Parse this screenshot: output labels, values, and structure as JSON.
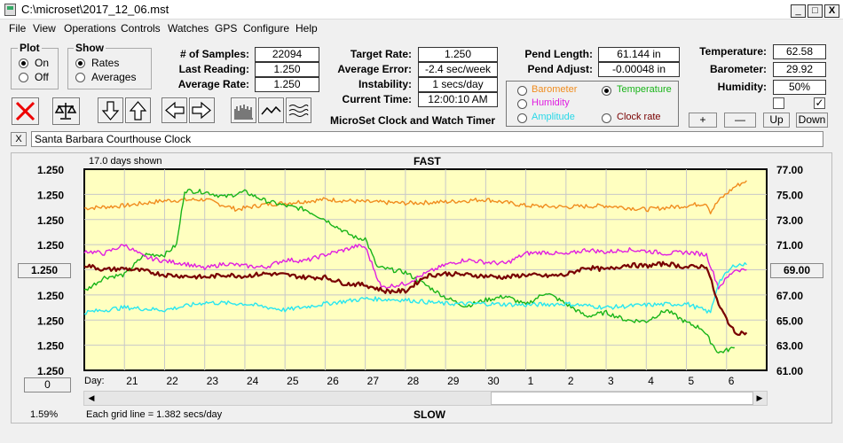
{
  "window": {
    "title": "C:\\microset\\2017_12_06.mst",
    "min": "_",
    "max": "□",
    "close": "X"
  },
  "menu": [
    "File",
    "View",
    "Operations",
    "Controls",
    "Watches",
    "GPS",
    "Configure",
    "Help"
  ],
  "plot": {
    "title": "Plot",
    "on": "On",
    "off": "Off",
    "selected": "On"
  },
  "show": {
    "title": "Show",
    "rates": "Rates",
    "averages": "Averages",
    "selected": "Rates"
  },
  "stats": {
    "samples_label": "# of Samples:",
    "samples": "22094",
    "last_label": "Last Reading:",
    "last": "1.250",
    "avg_label": "Average Rate:",
    "avg": "1.250"
  },
  "timer": {
    "target_label": "Target Rate:",
    "target": "1.250",
    "error_label": "Average Error:",
    "error": "-2.4 sec/week",
    "instab_label": "Instability:",
    "instab": "1 secs/day",
    "time_label": "Current Time:",
    "time": "12:00:10 AM",
    "caption": "MicroSet Clock and Watch Timer"
  },
  "pend": {
    "length_label": "Pend Length:",
    "length": "61.144 in",
    "adjust_label": "Pend Adjust:",
    "adjust": "-0.00048 in"
  },
  "series_select": {
    "barometer": "Barometer",
    "temperature": "Temperature",
    "humidity": "Humidity",
    "amplitude": "Amplitude",
    "clockrate": "Clock rate",
    "selected": "Temperature"
  },
  "env": {
    "temp_label": "Temperature:",
    "temp": "62.58",
    "baro_label": "Barometer:",
    "baro": "29.92",
    "hum_label": "Humidity:",
    "hum": "50%",
    "chk2": "✓"
  },
  "scale_buttons": {
    "plus": "+",
    "minus": "—",
    "up": "Up",
    "down": "Down"
  },
  "watch_name": "Santa Barbara Courthouse Clock",
  "clear": "X",
  "chart": {
    "days_shown": "17.0 days shown",
    "top_label": "FAST",
    "bottom_label": "SLOW",
    "day_label": "Day:",
    "grid_note": "Each grid line = 1.382 secs/day",
    "percent": "1.59%",
    "left_button": "1.250",
    "left_button2": "0",
    "right_button": "69.00"
  },
  "colors": {
    "barometer": "#f08c1e",
    "temperature": "#18b418",
    "humidity": "#e01ee0",
    "amplitude": "#28e6f0",
    "clockrate": "#780000",
    "plotbg": "#ffffc0"
  },
  "chart_data": {
    "type": "line",
    "x_ticks": [
      "21",
      "22",
      "23",
      "24",
      "25",
      "26",
      "27",
      "28",
      "29",
      "30",
      "1",
      "2",
      "3",
      "4",
      "5",
      "6"
    ],
    "left_ticks": [
      "1.250",
      "1.250",
      "1.250",
      "1.250",
      "1.250",
      "1.250",
      "1.250",
      "1.250",
      "1.250"
    ],
    "right_ticks": [
      "77.00",
      "75.00",
      "73.00",
      "71.00",
      "69.00",
      "67.00",
      "65.00",
      "63.00",
      "61.00"
    ],
    "ylim": [
      61,
      77
    ],
    "x_range": [
      20.0,
      37.0
    ],
    "series": [
      {
        "key": "barometer",
        "points": [
          [
            20.0,
            73.9
          ],
          [
            21,
            74.1
          ],
          [
            22,
            74.5
          ],
          [
            23,
            74.6
          ],
          [
            23.8,
            73.8
          ],
          [
            24.5,
            74.2
          ],
          [
            25,
            74.3
          ],
          [
            26,
            74.6
          ],
          [
            27,
            74.4
          ],
          [
            28,
            74.3
          ],
          [
            29,
            74.4
          ],
          [
            30,
            74.6
          ],
          [
            31,
            74.1
          ],
          [
            32,
            74.0
          ],
          [
            33,
            74.1
          ],
          [
            34,
            73.8
          ],
          [
            35,
            74.1
          ],
          [
            35.5,
            74.3
          ],
          [
            35.6,
            73.6
          ],
          [
            35.8,
            74.5
          ],
          [
            36.2,
            75.6
          ],
          [
            36.5,
            76.1
          ]
        ]
      },
      {
        "key": "temperature",
        "points": [
          [
            20.0,
            67.3
          ],
          [
            20.5,
            68.4
          ],
          [
            21,
            68.6
          ],
          [
            21.5,
            70.2
          ],
          [
            22,
            70.2
          ],
          [
            22.3,
            71.0
          ],
          [
            22.5,
            75.3
          ],
          [
            23,
            75.2
          ],
          [
            23.5,
            74.8
          ],
          [
            24,
            75.2
          ],
          [
            24.5,
            74.5
          ],
          [
            25,
            74.1
          ],
          [
            25.5,
            73.8
          ],
          [
            26,
            73.0
          ],
          [
            26.5,
            72.0
          ],
          [
            26.8,
            71.5
          ],
          [
            27,
            71.5
          ],
          [
            27.3,
            69.2
          ],
          [
            28,
            68.8
          ],
          [
            28.5,
            67.8
          ],
          [
            29,
            66.8
          ],
          [
            29.5,
            66.1
          ],
          [
            30,
            66.6
          ],
          [
            30.5,
            66.9
          ],
          [
            31,
            66.2
          ],
          [
            31.5,
            67.2
          ],
          [
            32,
            66.3
          ],
          [
            32.5,
            65.3
          ],
          [
            33,
            65.6
          ],
          [
            33.5,
            65.0
          ],
          [
            34,
            64.9
          ],
          [
            34.5,
            65.8
          ],
          [
            35,
            64.8
          ],
          [
            35.4,
            64.3
          ],
          [
            35.6,
            63.3
          ],
          [
            35.8,
            62.4
          ],
          [
            36.2,
            62.8
          ]
        ]
      },
      {
        "key": "humidity",
        "points": [
          [
            20.0,
            70.5
          ],
          [
            20.5,
            70.3
          ],
          [
            21,
            71.0
          ],
          [
            21.5,
            70.0
          ],
          [
            22,
            69.7
          ],
          [
            22.5,
            69.5
          ],
          [
            23,
            69.1
          ],
          [
            23.5,
            69.5
          ],
          [
            24,
            69.3
          ],
          [
            24.5,
            69.2
          ],
          [
            25,
            69.8
          ],
          [
            25.5,
            69.7
          ],
          [
            26,
            70.2
          ],
          [
            26.5,
            70.6
          ],
          [
            26.8,
            70.9
          ],
          [
            27,
            70.8
          ],
          [
            27.4,
            67.6
          ],
          [
            28,
            67.9
          ],
          [
            28.5,
            68.7
          ],
          [
            29,
            69.4
          ],
          [
            29.5,
            69.8
          ],
          [
            30,
            69.6
          ],
          [
            30.5,
            69.5
          ],
          [
            31,
            70.3
          ],
          [
            31.5,
            70.4
          ],
          [
            32,
            70.2
          ],
          [
            32.5,
            70.6
          ],
          [
            33,
            70.4
          ],
          [
            33.5,
            70.6
          ],
          [
            34,
            70.5
          ],
          [
            34.5,
            70.3
          ],
          [
            35,
            70.4
          ],
          [
            35.5,
            70.2
          ],
          [
            35.8,
            67.6
          ],
          [
            36.2,
            69.0
          ],
          [
            36.5,
            69.0
          ]
        ]
      },
      {
        "key": "amplitude",
        "points": [
          [
            20.0,
            65.6
          ],
          [
            21,
            66.0
          ],
          [
            22,
            65.8
          ],
          [
            23,
            66.4
          ],
          [
            24,
            66.3
          ],
          [
            25,
            65.8
          ],
          [
            26,
            66.3
          ],
          [
            27,
            66.7
          ],
          [
            28,
            66.6
          ],
          [
            29,
            66.3
          ],
          [
            30,
            66.3
          ],
          [
            31,
            66.2
          ],
          [
            32,
            66.3
          ],
          [
            33,
            66.0
          ],
          [
            34,
            66.2
          ],
          [
            35,
            66.3
          ],
          [
            35.6,
            65.6
          ],
          [
            35.8,
            68.0
          ],
          [
            36.2,
            69.4
          ],
          [
            36.5,
            69.4
          ]
        ]
      },
      {
        "key": "clockrate",
        "points": [
          [
            20.0,
            69.4
          ],
          [
            20.5,
            69.0
          ],
          [
            21,
            69.1
          ],
          [
            21.5,
            68.9
          ],
          [
            22,
            68.6
          ],
          [
            22.5,
            68.5
          ],
          [
            23,
            68.4
          ],
          [
            23.5,
            68.6
          ],
          [
            24,
            68.5
          ],
          [
            24.5,
            68.7
          ],
          [
            25,
            68.6
          ],
          [
            25.5,
            68.4
          ],
          [
            26,
            68.4
          ],
          [
            26.5,
            67.9
          ],
          [
            27,
            67.8
          ],
          [
            27.5,
            67.3
          ],
          [
            28,
            67.3
          ],
          [
            28.5,
            68.5
          ],
          [
            29,
            68.7
          ],
          [
            29.5,
            68.6
          ],
          [
            30,
            68.5
          ],
          [
            30.5,
            68.4
          ],
          [
            31,
            68.6
          ],
          [
            31.5,
            68.5
          ],
          [
            32,
            68.6
          ],
          [
            32.5,
            69.2
          ],
          [
            33,
            69.0
          ],
          [
            33.5,
            69.4
          ],
          [
            34,
            69.3
          ],
          [
            34.5,
            69.5
          ],
          [
            35,
            69.2
          ],
          [
            35.5,
            69.3
          ],
          [
            35.8,
            66.2
          ],
          [
            36.2,
            64.0
          ],
          [
            36.5,
            64.0
          ]
        ]
      }
    ]
  }
}
